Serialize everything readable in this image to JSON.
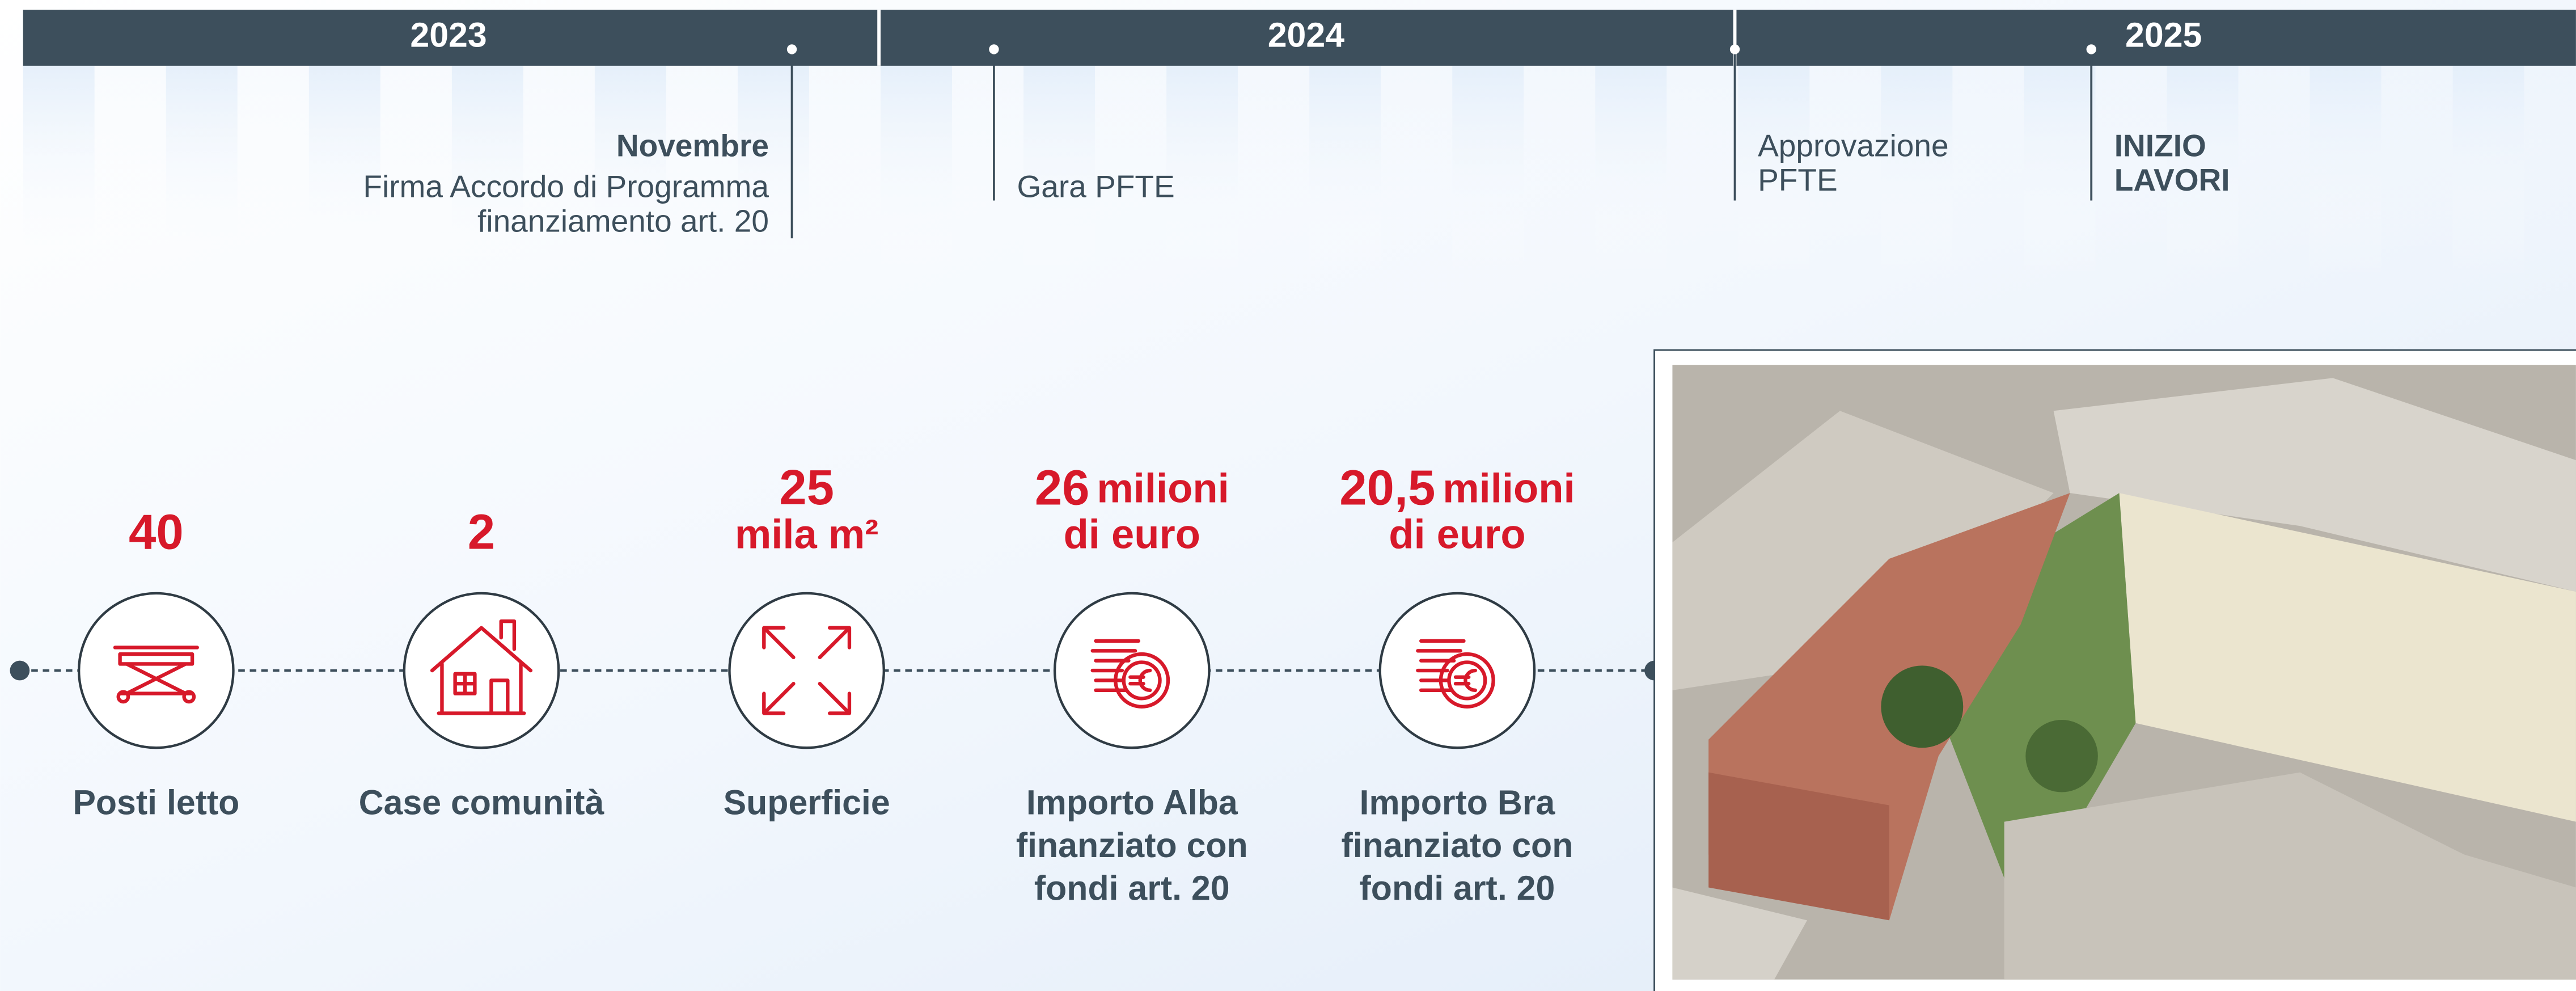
{
  "timeline": {
    "years": [
      "2023",
      "2024",
      "2025"
    ],
    "events": [
      {
        "title": "Novembre",
        "lines": [
          "Firma Accordo di Programma",
          "finanziamento art. 20"
        ]
      },
      {
        "lines": [
          "Gara PFTE"
        ]
      },
      {
        "lines": [
          "Approvazione",
          "PFTE"
        ]
      },
      {
        "title_lines": [
          "INIZIO",
          "LAVORI"
        ]
      }
    ]
  },
  "stats": [
    {
      "value": "40",
      "label": [
        "Posti letto"
      ]
    },
    {
      "value": "2",
      "label": [
        "Case comunità"
      ]
    },
    {
      "value": "25",
      "unit": "mila m²",
      "label": [
        "Superficie"
      ]
    },
    {
      "value": "26",
      "unit_inline": "milioni",
      "unit": "di euro",
      "label": [
        "Importo Alba",
        "finanziato con",
        "fondi art. 20"
      ]
    },
    {
      "value": "20,5",
      "unit_inline": "milioni",
      "unit": "di euro",
      "label": [
        "Importo Bra",
        "finanziato con",
        "fondi art. 20"
      ]
    }
  ]
}
